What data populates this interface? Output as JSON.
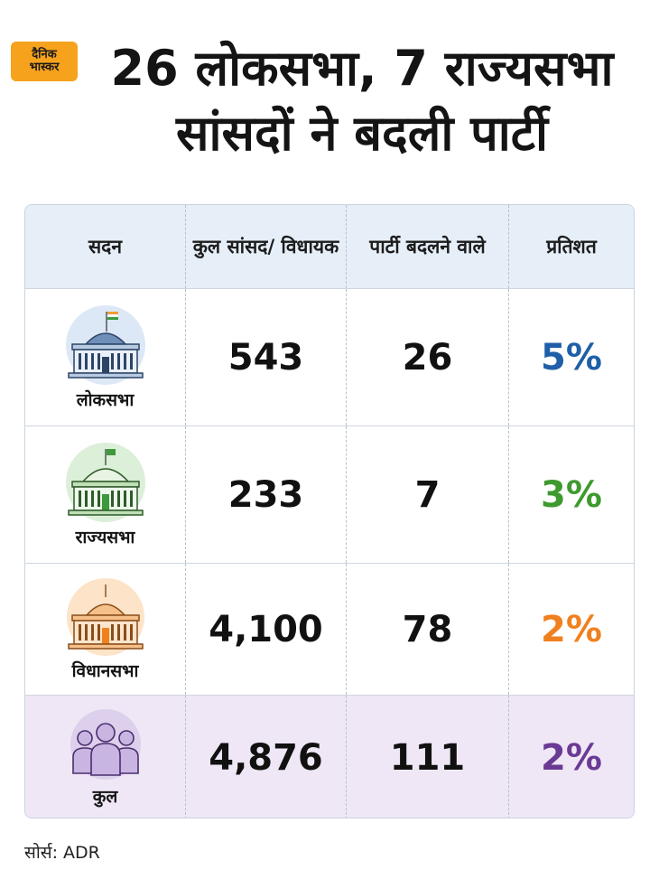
{
  "logo": {
    "line1": "दैनिक",
    "line2": "भास्कर"
  },
  "title": {
    "line1": "26 लोकसभा, 7 राज्यसभा",
    "line2": "सांसदों ने बदली पार्टी"
  },
  "table": {
    "headers": {
      "house": "सदन",
      "total": "कुल सांसद/ विधायक",
      "switched": "पार्टी बदलने वाले",
      "percent": "प्रतिशत"
    },
    "rows": [
      {
        "house": "लोकसभा",
        "total": "543",
        "switched": "26",
        "percent": "5%",
        "icon": "lok-sabha-building-icon",
        "color": "#1f5fa8"
      },
      {
        "house": "राज्यसभा",
        "total": "233",
        "switched": "7",
        "percent": "3%",
        "icon": "rajya-sabha-building-icon",
        "color": "#3e9a2e"
      },
      {
        "house": "विधानसभा",
        "total": "4,100",
        "switched": "78",
        "percent": "2%",
        "icon": "vidhan-sabha-building-icon",
        "color": "#f0801e"
      },
      {
        "house": "कुल",
        "total": "4,876",
        "switched": "111",
        "percent": "2%",
        "icon": "people-group-icon",
        "color": "#6a3a94"
      }
    ]
  },
  "source": "सोर्स: ADR"
}
